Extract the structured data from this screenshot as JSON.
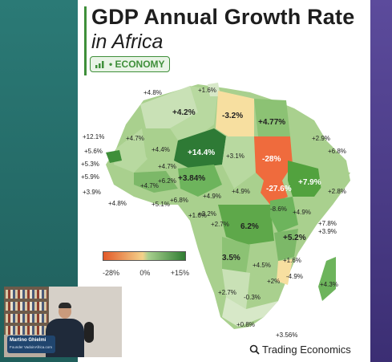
{
  "header": {
    "title": "GDP Annual Growth Rate",
    "subtitle": "in Africa",
    "tag_label": "• ECONOMY",
    "tag_icon": "bar-chart-icon"
  },
  "legend": {
    "min_label": "-28%",
    "mid_label": "0%",
    "max_label": "+15%"
  },
  "brand": {
    "name": "Trading Economics",
    "icon": "magnifier-icon"
  },
  "webcam": {
    "name": "Martino Ghielmi",
    "role": "Founder VadoinAfrica.com"
  },
  "chart_data": {
    "type": "map",
    "title": "GDP Annual Growth Rate",
    "subtitle": "in Africa",
    "scale": {
      "min": "-28%",
      "mid": "0%",
      "max": "+15%"
    },
    "labels": {
      "morocco": "+4.8%",
      "tunisia": "+1.6%",
      "algeria": "+4.2%",
      "libya": "-3.2%",
      "egypt": "+4.77%",
      "mauritania": "+4.7%",
      "mali": "+4.4%",
      "niger": "+14.4%",
      "chad": "+3.1%",
      "sudan": "-28%",
      "south_sudan": "-27.6%",
      "ethiopia": "+7.9%",
      "eritrea": "+2.9%",
      "djibouti": "+6.8%",
      "somalia": "+2.8%",
      "senegal": "+12.1%",
      "gambia": "+5.6%",
      "guinea_bissau": "+5.3%",
      "guinea": "+5.9%",
      "sierra_leone": "+3.9%",
      "liberia": "+4.8%",
      "cote_divoire": "+4.7%",
      "burkina": "+4.7%",
      "ghana": "+6.2%",
      "togo": "+5.1%",
      "benin": "+6.8%",
      "nigeria": "+3.84%",
      "cameroon": "+4.9%",
      "car": "+4.9%",
      "eq_guinea": "+1.6%",
      "gabon": "+3.2%",
      "congo": "+2.7%",
      "drc": "6.2%",
      "uganda": "-8.6%",
      "kenya": "+4.9%",
      "rwanda": "+7.8%",
      "burundi": "+3.9%",
      "tanzania": "+5.2%",
      "angola": "3.5%",
      "zambia": "+4.5%",
      "malawi": "+1.6%",
      "mozambique": "+2%",
      "zimbabwe": "-4.9%",
      "madagascar": "+4.3%",
      "namibia": "+2.7%",
      "botswana": "-0.3%",
      "south_africa": "+0.8%",
      "lesotho": "+3.56%"
    }
  }
}
